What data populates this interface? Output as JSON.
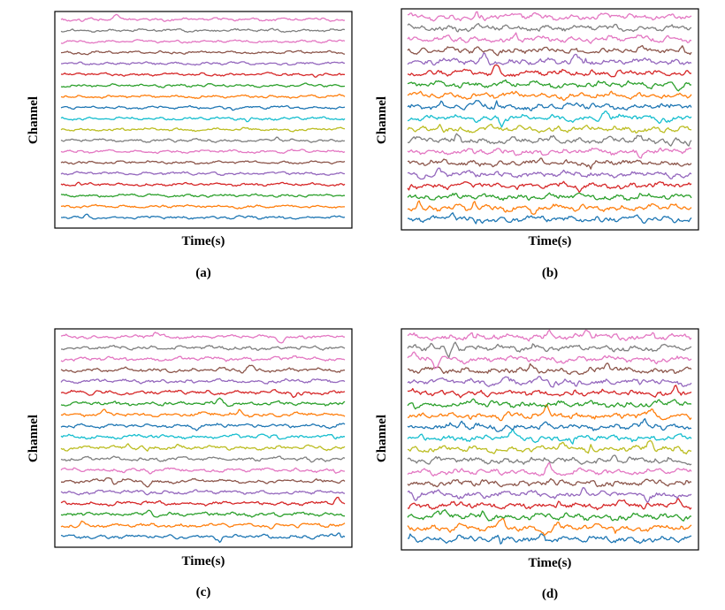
{
  "chart_data": [
    {
      "type": "line",
      "panel_label": "(a)",
      "xlabel": "Time(s)",
      "ylabel": "Channel",
      "xticks": "none",
      "yticks": "none",
      "grid": false,
      "legend": "none",
      "channels": 19,
      "amplitude": "low",
      "series_colors": [
        "#1f77b4",
        "#ff7f0e",
        "#2ca02c",
        "#d62728",
        "#9467bd",
        "#8c564b",
        "#e377c2",
        "#7f7f7f",
        "#bcbd22",
        "#17becf",
        "#1f77b4",
        "#ff7f0e",
        "#2ca02c",
        "#d62728",
        "#9467bd",
        "#8c564b",
        "#e377c2",
        "#7f7f7f",
        "#e377c2"
      ]
    },
    {
      "type": "line",
      "panel_label": "(b)",
      "xlabel": "Time(s)",
      "ylabel": "Channel",
      "xticks": "none",
      "yticks": "none",
      "grid": false,
      "legend": "none",
      "channels": 19,
      "amplitude": "high",
      "series_colors": [
        "#1f77b4",
        "#ff7f0e",
        "#2ca02c",
        "#d62728",
        "#9467bd",
        "#8c564b",
        "#e377c2",
        "#7f7f7f",
        "#bcbd22",
        "#17becf",
        "#1f77b4",
        "#ff7f0e",
        "#2ca02c",
        "#d62728",
        "#9467bd",
        "#8c564b",
        "#e377c2",
        "#7f7f7f",
        "#e377c2"
      ]
    },
    {
      "type": "line",
      "panel_label": "(c)",
      "xlabel": "Time(s)",
      "ylabel": "Channel",
      "xticks": "none",
      "yticks": "none",
      "grid": false,
      "legend": "none",
      "channels": 19,
      "amplitude": "medium",
      "series_colors": [
        "#1f77b4",
        "#ff7f0e",
        "#2ca02c",
        "#d62728",
        "#9467bd",
        "#8c564b",
        "#e377c2",
        "#7f7f7f",
        "#bcbd22",
        "#17becf",
        "#1f77b4",
        "#ff7f0e",
        "#2ca02c",
        "#d62728",
        "#9467bd",
        "#8c564b",
        "#e377c2",
        "#7f7f7f",
        "#e377c2"
      ]
    },
    {
      "type": "line",
      "panel_label": "(d)",
      "xlabel": "Time(s)",
      "ylabel": "Channel",
      "xticks": "none",
      "yticks": "none",
      "grid": false,
      "legend": "none",
      "channels": 19,
      "amplitude": "high",
      "series_colors": [
        "#1f77b4",
        "#ff7f0e",
        "#2ca02c",
        "#d62728",
        "#9467bd",
        "#8c564b",
        "#e377c2",
        "#7f7f7f",
        "#bcbd22",
        "#17becf",
        "#1f77b4",
        "#ff7f0e",
        "#2ca02c",
        "#d62728",
        "#9467bd",
        "#8c564b",
        "#e377c2",
        "#7f7f7f",
        "#e377c2"
      ]
    }
  ]
}
